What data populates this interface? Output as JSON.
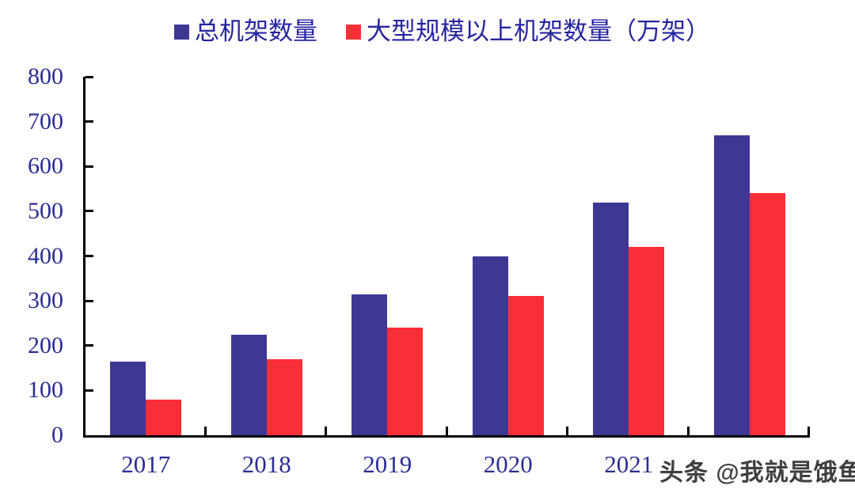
{
  "chart_data": {
    "type": "bar",
    "title": "",
    "xlabel": "",
    "ylabel": "",
    "categories": [
      "2017",
      "2018",
      "2019",
      "2020",
      "2021",
      ""
    ],
    "series": [
      {
        "name": "总机架数量",
        "key": "total-racks",
        "color": "#3E3794",
        "values": [
          165,
          225,
          315,
          400,
          520,
          670
        ]
      },
      {
        "name": "大型规模以上机架数量（万架）",
        "key": "large-scale-racks",
        "color": "#FA2E36",
        "values": [
          80,
          170,
          240,
          310,
          420,
          540
        ]
      }
    ],
    "ylim": [
      0,
      800
    ],
    "y_ticks": [
      0,
      100,
      200,
      300,
      400,
      500,
      600,
      700,
      800
    ],
    "legend_position": "top",
    "grid": false
  },
  "watermark": {
    "text": "头条 @我就是饿鱼"
  },
  "colors": {
    "bar_navy": "#3E3794",
    "bar_red": "#FA2E36",
    "legend_text": "#2824A0",
    "tick_label_text": "#2B2D93",
    "axis_line": "#000000",
    "watermark_text": "#3F3F3F",
    "background": "#FFFFFF"
  }
}
